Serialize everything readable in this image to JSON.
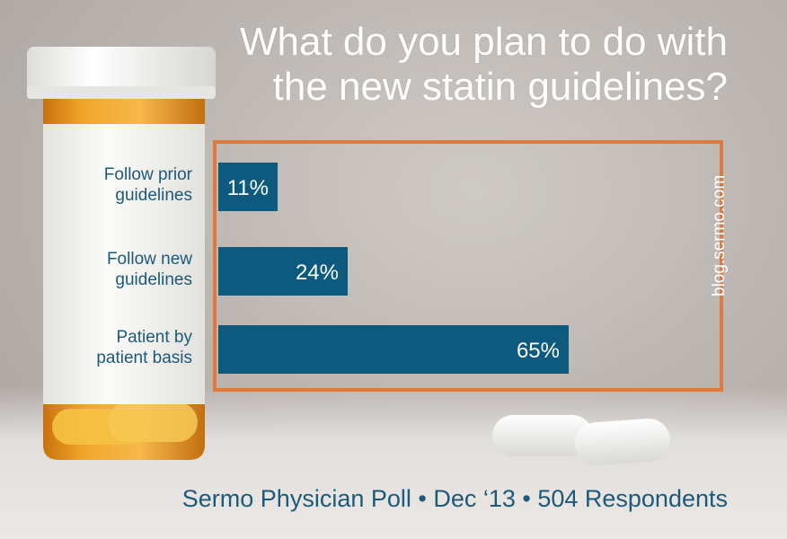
{
  "header": {
    "title_line1": "What do you plan to do with",
    "title_line2": "the new statin guidelines?"
  },
  "watermark": "blog.sermo.com",
  "footer": "Sermo Physician Poll • Dec ‘13 • 504 Respondents",
  "colors": {
    "bar": "#0d5a7e",
    "frame": "#e07a3c",
    "label_text": "#1c5a7a",
    "bottle_amber": "#e99a1a",
    "cap": "#f4f4f2"
  },
  "chart_data": {
    "type": "bar",
    "orientation": "horizontal",
    "categories": [
      [
        "Follow prior",
        "guidelines"
      ],
      [
        "Follow new",
        "guidelines"
      ],
      [
        "Patient by",
        "patient basis"
      ]
    ],
    "values": [
      11,
      24,
      65
    ],
    "value_labels": [
      "11%",
      "24%",
      "65%"
    ],
    "xlim": [
      0,
      100
    ],
    "grid": false,
    "legend": "none"
  }
}
